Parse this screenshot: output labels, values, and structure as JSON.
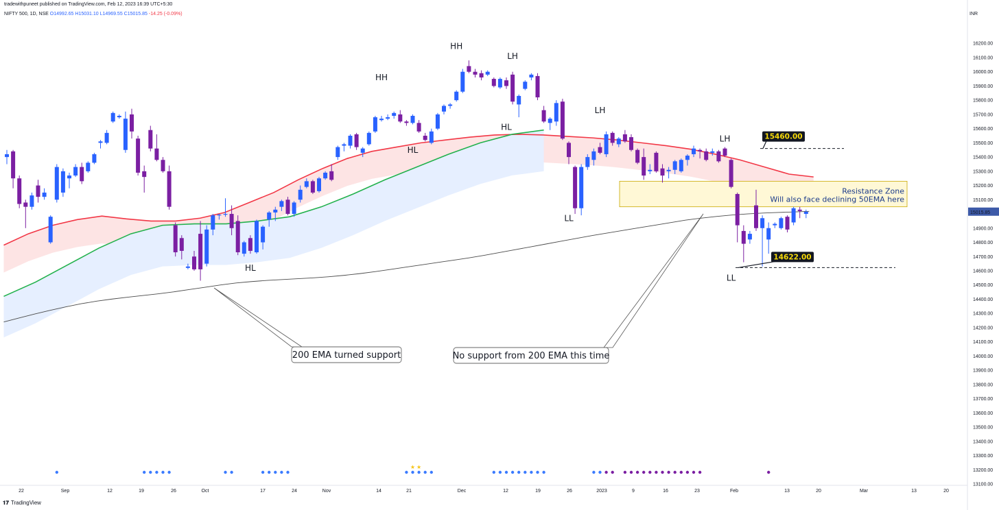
{
  "header": {
    "published": "tradewithpuneet published on TradingView.com, Feb 12, 2023 16:39 UTC+5:30"
  },
  "ohlc": {
    "symbol": "NIFTY 500, 1D, NSE",
    "open": "O14992.65",
    "high": "H15031.10",
    "low": "L14969.55",
    "close": "C15015.85",
    "change": "-14.25 (-0.09%)"
  },
  "footer": {
    "brand": "TradingView"
  },
  "colors": {
    "up": "#2962ff",
    "down": "#7b1fa2",
    "ema50": "#f23645",
    "ema20": "#22b14c",
    "ema200": "#4a4a4a",
    "zone_fill": "#fff8d6",
    "zone_border": "#c9a700",
    "zone_text": "#1a3a8a",
    "price_tag": "#131722",
    "price_tag_text": "#f5d90a"
  },
  "chart_data": {
    "type": "candlestick",
    "currency": "INR",
    "current_price_label": "15015.85",
    "ylim": [
      13100,
      16300
    ],
    "y_ticks": [
      13100,
      13200,
      13300,
      13400,
      13500,
      13600,
      13700,
      13800,
      13900,
      14000,
      14100,
      14200,
      14300,
      14400,
      14500,
      14600,
      14700,
      14800,
      14900,
      15000,
      15100,
      15200,
      15300,
      15400,
      15500,
      15600,
      15700,
      15800,
      15900,
      16000,
      16100,
      16200
    ],
    "x_ticks": [
      "22",
      "Sep",
      "12",
      "19",
      "26",
      "Oct",
      "17",
      "24",
      "Nov",
      "14",
      "21",
      "Dec",
      "12",
      "19",
      "26",
      "2023",
      "9",
      "16",
      "23",
      "Feb",
      "13",
      "20",
      "Mar",
      "13",
      "20"
    ],
    "candles": [
      {
        "o": 15400,
        "h": 15450,
        "l": 15350,
        "c": 15420
      },
      {
        "o": 15440,
        "h": 15450,
        "l": 15180,
        "c": 15250
      },
      {
        "o": 15250,
        "h": 15270,
        "l": 15040,
        "c": 15070
      },
      {
        "o": 15080,
        "h": 15100,
        "l": 14900,
        "c": 15050
      },
      {
        "o": 15050,
        "h": 15150,
        "l": 15030,
        "c": 15130
      },
      {
        "o": 15200,
        "h": 15240,
        "l": 15080,
        "c": 15120
      },
      {
        "o": 15120,
        "h": 15180,
        "l": 15100,
        "c": 15150
      },
      {
        "o": 14800,
        "h": 14990,
        "l": 14790,
        "c": 14980
      },
      {
        "o": 15100,
        "h": 15350,
        "l": 15080,
        "c": 15330
      },
      {
        "o": 15150,
        "h": 15320,
        "l": 15120,
        "c": 15300
      },
      {
        "o": 15250,
        "h": 15290,
        "l": 15180,
        "c": 15270
      },
      {
        "o": 15270,
        "h": 15350,
        "l": 15260,
        "c": 15330
      },
      {
        "o": 15330,
        "h": 15360,
        "l": 15210,
        "c": 15230
      },
      {
        "o": 15300,
        "h": 15370,
        "l": 15290,
        "c": 15360
      },
      {
        "o": 15360,
        "h": 15430,
        "l": 15350,
        "c": 15420
      },
      {
        "o": 15500,
        "h": 15520,
        "l": 15460,
        "c": 15510
      },
      {
        "o": 15500,
        "h": 15590,
        "l": 15490,
        "c": 15570
      },
      {
        "o": 15650,
        "h": 15720,
        "l": 15640,
        "c": 15710
      },
      {
        "o": 15680,
        "h": 15700,
        "l": 15670,
        "c": 15690
      },
      {
        "o": 15450,
        "h": 15720,
        "l": 15430,
        "c": 15670
      },
      {
        "o": 15700,
        "h": 15740,
        "l": 15530,
        "c": 15580
      },
      {
        "o": 15530,
        "h": 15550,
        "l": 15270,
        "c": 15290
      },
      {
        "o": 15300,
        "h": 15340,
        "l": 15150,
        "c": 15260
      },
      {
        "o": 15590,
        "h": 15620,
        "l": 15440,
        "c": 15460
      },
      {
        "o": 15460,
        "h": 15560,
        "l": 15370,
        "c": 15380
      },
      {
        "o": 15380,
        "h": 15400,
        "l": 15290,
        "c": 15300
      },
      {
        "o": 15300,
        "h": 15340,
        "l": 15030,
        "c": 15050
      },
      {
        "o": 14920,
        "h": 14940,
        "l": 14700,
        "c": 14730
      },
      {
        "o": 14830,
        "h": 14850,
        "l": 14680,
        "c": 14740
      },
      {
        "o": 14620,
        "h": 14650,
        "l": 14610,
        "c": 14630
      },
      {
        "o": 14700,
        "h": 14740,
        "l": 14600,
        "c": 14610
      },
      {
        "o": 14860,
        "h": 14950,
        "l": 14530,
        "c": 14610
      },
      {
        "o": 14650,
        "h": 14920,
        "l": 14630,
        "c": 14890
      },
      {
        "o": 14890,
        "h": 15000,
        "l": 14850,
        "c": 14990
      },
      {
        "o": 14990,
        "h": 15000,
        "l": 14960,
        "c": 14995
      },
      {
        "o": 15000,
        "h": 15110,
        "l": 14980,
        "c": 15000
      },
      {
        "o": 15000,
        "h": 15060,
        "l": 14850,
        "c": 14900
      },
      {
        "o": 14950,
        "h": 14990,
        "l": 14710,
        "c": 14730
      },
      {
        "o": 14720,
        "h": 14810,
        "l": 14700,
        "c": 14800
      },
      {
        "o": 14830,
        "h": 14850,
        "l": 14720,
        "c": 14740
      },
      {
        "o": 14730,
        "h": 14960,
        "l": 14720,
        "c": 14950
      },
      {
        "o": 14800,
        "h": 14920,
        "l": 14750,
        "c": 14910
      },
      {
        "o": 14960,
        "h": 15020,
        "l": 14910,
        "c": 15010
      },
      {
        "o": 15010,
        "h": 15050,
        "l": 14950,
        "c": 15030
      },
      {
        "o": 15050,
        "h": 15100,
        "l": 15020,
        "c": 15090
      },
      {
        "o": 15100,
        "h": 15120,
        "l": 14990,
        "c": 15000
      },
      {
        "o": 15000,
        "h": 15090,
        "l": 14980,
        "c": 15080
      },
      {
        "o": 15100,
        "h": 15200,
        "l": 15080,
        "c": 15170
      },
      {
        "o": 15190,
        "h": 15250,
        "l": 15180,
        "c": 15230
      },
      {
        "o": 15230,
        "h": 15240,
        "l": 15140,
        "c": 15150
      },
      {
        "o": 15160,
        "h": 15260,
        "l": 15150,
        "c": 15250
      },
      {
        "o": 15250,
        "h": 15300,
        "l": 15240,
        "c": 15290
      },
      {
        "o": 15300,
        "h": 15350,
        "l": 15230,
        "c": 15240
      },
      {
        "o": 15400,
        "h": 15480,
        "l": 15380,
        "c": 15470
      },
      {
        "o": 15480,
        "h": 15500,
        "l": 15440,
        "c": 15490
      },
      {
        "o": 15480,
        "h": 15560,
        "l": 15460,
        "c": 15550
      },
      {
        "o": 15560,
        "h": 15570,
        "l": 15450,
        "c": 15470
      },
      {
        "o": 15430,
        "h": 15470,
        "l": 15400,
        "c": 15460
      },
      {
        "o": 15490,
        "h": 15580,
        "l": 15480,
        "c": 15570
      },
      {
        "o": 15580,
        "h": 15690,
        "l": 15570,
        "c": 15680
      },
      {
        "o": 15660,
        "h": 15690,
        "l": 15650,
        "c": 15670
      },
      {
        "o": 15670,
        "h": 15700,
        "l": 15660,
        "c": 15680
      },
      {
        "o": 15690,
        "h": 15720,
        "l": 15670,
        "c": 15710
      },
      {
        "o": 15700,
        "h": 15730,
        "l": 15640,
        "c": 15650
      },
      {
        "o": 15650,
        "h": 15660,
        "l": 15620,
        "c": 15640
      },
      {
        "o": 15640,
        "h": 15700,
        "l": 15630,
        "c": 15690
      },
      {
        "o": 15640,
        "h": 15660,
        "l": 15570,
        "c": 15580
      },
      {
        "o": 15550,
        "h": 15570,
        "l": 15510,
        "c": 15520
      },
      {
        "o": 15500,
        "h": 15600,
        "l": 15490,
        "c": 15580
      },
      {
        "o": 15600,
        "h": 15710,
        "l": 15590,
        "c": 15700
      },
      {
        "o": 15720,
        "h": 15770,
        "l": 15700,
        "c": 15760
      },
      {
        "o": 15760,
        "h": 15780,
        "l": 15740,
        "c": 15770
      },
      {
        "o": 15800,
        "h": 15870,
        "l": 15790,
        "c": 15860
      },
      {
        "o": 15860,
        "h": 16020,
        "l": 15850,
        "c": 16000
      },
      {
        "o": 16040,
        "h": 16080,
        "l": 15990,
        "c": 16000
      },
      {
        "o": 16000,
        "h": 16020,
        "l": 15960,
        "c": 15980
      },
      {
        "o": 15990,
        "h": 16010,
        "l": 15940,
        "c": 15960
      },
      {
        "o": 15980,
        "h": 16010,
        "l": 15970,
        "c": 16000
      },
      {
        "o": 15950,
        "h": 15960,
        "l": 15890,
        "c": 15900
      },
      {
        "o": 15890,
        "h": 15960,
        "l": 15880,
        "c": 15950
      },
      {
        "o": 15940,
        "h": 15960,
        "l": 15880,
        "c": 15900
      },
      {
        "o": 15980,
        "h": 16000,
        "l": 15770,
        "c": 15790
      },
      {
        "o": 15770,
        "h": 15840,
        "l": 15680,
        "c": 15830
      },
      {
        "o": 15880,
        "h": 15940,
        "l": 15870,
        "c": 15930
      },
      {
        "o": 15960,
        "h": 15990,
        "l": 15940,
        "c": 15980
      },
      {
        "o": 15970,
        "h": 15990,
        "l": 15800,
        "c": 15820
      },
      {
        "o": 15730,
        "h": 15760,
        "l": 15640,
        "c": 15650
      },
      {
        "o": 15640,
        "h": 15680,
        "l": 15590,
        "c": 15670
      },
      {
        "o": 15650,
        "h": 15800,
        "l": 15620,
        "c": 15780
      },
      {
        "o": 15790,
        "h": 15810,
        "l": 15520,
        "c": 15530
      },
      {
        "o": 15500,
        "h": 15510,
        "l": 15350,
        "c": 15400
      },
      {
        "o": 15330,
        "h": 15340,
        "l": 15000,
        "c": 15040
      },
      {
        "o": 15040,
        "h": 15350,
        "l": 14990,
        "c": 15330
      },
      {
        "o": 15330,
        "h": 15420,
        "l": 15310,
        "c": 15400
      },
      {
        "o": 15380,
        "h": 15460,
        "l": 15340,
        "c": 15440
      },
      {
        "o": 15470,
        "h": 15500,
        "l": 15420,
        "c": 15430
      },
      {
        "o": 15420,
        "h": 15580,
        "l": 15400,
        "c": 15560
      },
      {
        "o": 15570,
        "h": 15580,
        "l": 15480,
        "c": 15500
      },
      {
        "o": 15490,
        "h": 15540,
        "l": 15470,
        "c": 15530
      },
      {
        "o": 15560,
        "h": 15590,
        "l": 15500,
        "c": 15510
      },
      {
        "o": 15540,
        "h": 15560,
        "l": 15440,
        "c": 15450
      },
      {
        "o": 15450,
        "h": 15460,
        "l": 15350,
        "c": 15360
      },
      {
        "o": 15400,
        "h": 15460,
        "l": 15240,
        "c": 15270
      },
      {
        "o": 15300,
        "h": 15350,
        "l": 15280,
        "c": 15310
      },
      {
        "o": 15430,
        "h": 15440,
        "l": 15290,
        "c": 15300
      },
      {
        "o": 15320,
        "h": 15350,
        "l": 15220,
        "c": 15270
      },
      {
        "o": 15300,
        "h": 15330,
        "l": 15250,
        "c": 15310
      },
      {
        "o": 15310,
        "h": 15380,
        "l": 15280,
        "c": 15370
      },
      {
        "o": 15300,
        "h": 15390,
        "l": 15290,
        "c": 15380
      },
      {
        "o": 15380,
        "h": 15420,
        "l": 15340,
        "c": 15410
      },
      {
        "o": 15420,
        "h": 15480,
        "l": 15400,
        "c": 15460
      },
      {
        "o": 15450,
        "h": 15460,
        "l": 15390,
        "c": 15440
      },
      {
        "o": 15440,
        "h": 15460,
        "l": 15370,
        "c": 15380
      },
      {
        "o": 15430,
        "h": 15460,
        "l": 15410,
        "c": 15440
      },
      {
        "o": 15440,
        "h": 15450,
        "l": 15360,
        "c": 15370
      },
      {
        "o": 15460,
        "h": 15470,
        "l": 15400,
        "c": 15410
      },
      {
        "o": 15380,
        "h": 15390,
        "l": 15180,
        "c": 15190
      },
      {
        "o": 15140,
        "h": 15150,
        "l": 14800,
        "c": 14920
      },
      {
        "o": 14880,
        "h": 14920,
        "l": 14660,
        "c": 14790
      },
      {
        "o": 14820,
        "h": 14880,
        "l": 14790,
        "c": 14860
      },
      {
        "o": 15060,
        "h": 15170,
        "l": 14880,
        "c": 14900
      },
      {
        "o": 14900,
        "h": 14990,
        "l": 14630,
        "c": 14970
      },
      {
        "o": 14820,
        "h": 14940,
        "l": 14720,
        "c": 14900
      },
      {
        "o": 14920,
        "h": 14940,
        "l": 14900,
        "c": 14930
      },
      {
        "o": 14900,
        "h": 14980,
        "l": 14890,
        "c": 14970
      },
      {
        "o": 14980,
        "h": 14990,
        "l": 14870,
        "c": 14890
      },
      {
        "o": 14940,
        "h": 15050,
        "l": 14920,
        "c": 15040
      },
      {
        "o": 15030,
        "h": 15050,
        "l": 14970,
        "c": 15020
      },
      {
        "o": 15000,
        "h": 15030,
        "l": 14970,
        "c": 15015
      }
    ],
    "ema200": [
      14240,
      14268,
      14296,
      14322,
      14346,
      14368,
      14386,
      14401,
      14414,
      14426,
      14438,
      14452,
      14468,
      14484,
      14500,
      14514,
      14524,
      14532,
      14538,
      14544,
      14550,
      14558,
      14568,
      14580,
      14594,
      14610,
      14626,
      14642,
      14658,
      14674,
      14690,
      14708,
      14728,
      14748,
      14768,
      14788,
      14808,
      14828,
      14848,
      14866,
      14884,
      14902,
      14920,
      14938,
      14956,
      14970,
      14982,
      14992,
      15000,
      15006,
      15010,
      15014,
      15018
    ],
    "ema50": [
      14780,
      14860,
      14920,
      14960,
      14985,
      14965,
      14950,
      14950,
      14970,
      15010,
      15080,
      15150,
      15240,
      15320,
      15390,
      15440,
      15470,
      15500,
      15520,
      15540,
      15555,
      15560,
      15555,
      15545,
      15535,
      15520,
      15500,
      15480,
      15455,
      15420,
      15380,
      15330,
      15280,
      15260
    ],
    "ema20": [
      14420,
      14520,
      14640,
      14760,
      14860,
      14920,
      14930,
      14930,
      14950,
      14980,
      15050,
      15140,
      15240,
      15330,
      15420,
      15500,
      15560,
      15590
    ],
    "annotations": [
      {
        "text": "HH",
        "bar": 72,
        "price": 16160
      },
      {
        "text": "HH",
        "bar": 60,
        "price": 15940
      },
      {
        "text": "LH",
        "bar": 81,
        "price": 16090
      },
      {
        "text": "HL",
        "bar": 80,
        "price": 15590
      },
      {
        "text": "HL",
        "bar": 65,
        "price": 15430
      },
      {
        "text": "LH",
        "bar": 95,
        "price": 15710
      },
      {
        "text": "LH",
        "bar": 115,
        "price": 15510
      },
      {
        "text": "LL",
        "bar": 90,
        "price": 14950
      },
      {
        "text": "HL",
        "bar": 39,
        "price": 14600
      },
      {
        "text": "LL",
        "bar": 116,
        "price": 14530
      }
    ],
    "levels": [
      {
        "label": "15460.00",
        "price": 15460
      },
      {
        "label": "14622.00",
        "price": 14622
      }
    ],
    "zone": {
      "title": "Resistance Zone",
      "subtitle": "Will also face declining 50EMA here",
      "from": 15050,
      "to": 15230
    },
    "callouts": [
      {
        "text": "200 EMA turned support"
      },
      {
        "text": "No support from 200 EMA this time"
      }
    ],
    "signal_dots": [
      {
        "bar": 8,
        "color": "#3b7bff"
      },
      {
        "bar": 22,
        "color": "#3b7bff"
      },
      {
        "bar": 23,
        "color": "#3b7bff"
      },
      {
        "bar": 24,
        "color": "#3b7bff"
      },
      {
        "bar": 25,
        "color": "#3b7bff"
      },
      {
        "bar": 26,
        "color": "#3b7bff"
      },
      {
        "bar": 35,
        "color": "#3b7bff"
      },
      {
        "bar": 36,
        "color": "#3b7bff"
      },
      {
        "bar": 41,
        "color": "#3b7bff"
      },
      {
        "bar": 42,
        "color": "#3b7bff"
      },
      {
        "bar": 43,
        "color": "#3b7bff"
      },
      {
        "bar": 44,
        "color": "#3b7bff"
      },
      {
        "bar": 45,
        "color": "#3b7bff"
      },
      {
        "bar": 64,
        "color": "#3b7bff"
      },
      {
        "bar": 65,
        "color": "#3b7bff"
      },
      {
        "bar": 66,
        "color": "#3b7bff"
      },
      {
        "bar": 67,
        "color": "#3b7bff"
      },
      {
        "bar": 68,
        "color": "#3b7bff"
      },
      {
        "bar": 78,
        "color": "#3b7bff"
      },
      {
        "bar": 79,
        "color": "#3b7bff"
      },
      {
        "bar": 80,
        "color": "#3b7bff"
      },
      {
        "bar": 81,
        "color": "#3b7bff"
      },
      {
        "bar": 82,
        "color": "#3b7bff"
      },
      {
        "bar": 83,
        "color": "#3b7bff"
      },
      {
        "bar": 84,
        "color": "#3b7bff"
      },
      {
        "bar": 85,
        "color": "#3b7bff"
      },
      {
        "bar": 86,
        "color": "#3b7bff"
      },
      {
        "bar": 94,
        "color": "#3b7bff"
      },
      {
        "bar": 95,
        "color": "#3b7bff"
      },
      {
        "bar": 96,
        "color": "#7b1fa2"
      },
      {
        "bar": 97,
        "color": "#7b1fa2"
      },
      {
        "bar": 99,
        "color": "#7b1fa2"
      },
      {
        "bar": 100,
        "color": "#7b1fa2"
      },
      {
        "bar": 101,
        "color": "#7b1fa2"
      },
      {
        "bar": 102,
        "color": "#7b1fa2"
      },
      {
        "bar": 103,
        "color": "#7b1fa2"
      },
      {
        "bar": 104,
        "color": "#7b1fa2"
      },
      {
        "bar": 105,
        "color": "#7b1fa2"
      },
      {
        "bar": 106,
        "color": "#7b1fa2"
      },
      {
        "bar": 107,
        "color": "#7b1fa2"
      },
      {
        "bar": 108,
        "color": "#7b1fa2"
      },
      {
        "bar": 109,
        "color": "#7b1fa2"
      },
      {
        "bar": 110,
        "color": "#7b1fa2"
      },
      {
        "bar": 111,
        "color": "#7b1fa2"
      },
      {
        "bar": 122,
        "color": "#7b1fa2"
      }
    ],
    "signal_stars": [
      {
        "bar": 65
      },
      {
        "bar": 66
      }
    ]
  }
}
